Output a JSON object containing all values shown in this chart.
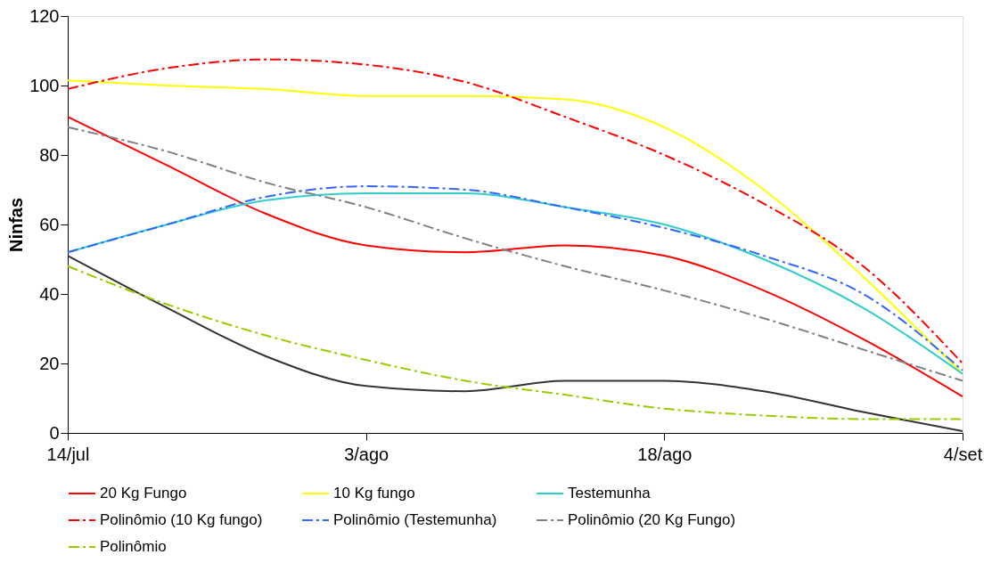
{
  "chart_data": {
    "type": "line",
    "ylabel": "Ninfas",
    "categories": [
      "14/jul",
      null,
      null,
      "3/ago",
      null,
      null,
      "18/ago",
      null,
      null,
      "4/set"
    ],
    "ylim": [
      0,
      120
    ],
    "yticks": [
      0,
      20,
      40,
      60,
      80,
      100,
      120
    ],
    "grid": false,
    "legend": "bottom",
    "marker": "none",
    "series": [
      {
        "color": "#333333",
        "line_style": "solid",
        "values": [
          51,
          36,
          22,
          13.5,
          12,
          15,
          15,
          12,
          6,
          0.5
        ]
      },
      {
        "name": "20 Kg Fungo",
        "color": "#ff0000",
        "line_style": "solid",
        "values": [
          91,
          77,
          63,
          54,
          52,
          54,
          51,
          41,
          27,
          10.5
        ]
      },
      {
        "name": "10 Kg fungo",
        "color": "#ffff00",
        "line_style": "solid",
        "values": [
          101.5,
          100,
          99,
          97,
          97,
          96,
          88,
          70,
          45,
          17
        ]
      },
      {
        "name": "Testemunha",
        "color": "#33cccc",
        "line_style": "solid",
        "values": [
          52,
          60,
          67,
          69,
          69,
          65,
          60,
          50,
          36,
          17
        ]
      },
      {
        "name": "Polinômio (10 Kg fungo)",
        "color": "#ff0000",
        "line_style": "dashed",
        "values": [
          99,
          105,
          107.5,
          106,
          101,
          91,
          80,
          66,
          48,
          20
        ]
      },
      {
        "name": "Polinômio (Testemunha)",
        "color": "#3366ff",
        "line_style": "dashed",
        "values": [
          52,
          60,
          68,
          71,
          70,
          65,
          59,
          51,
          40,
          18
        ]
      },
      {
        "name": "Polinômio (20 Kg Fungo)",
        "color": "#808080",
        "line_style": "dashed",
        "values": [
          88,
          81,
          72,
          65,
          56,
          48,
          41,
          33,
          24,
          15
        ]
      },
      {
        "name": "Polinômio",
        "color": "#99cc00",
        "line_style": "dashed",
        "values": [
          48,
          37,
          28,
          21,
          15,
          11,
          7,
          5,
          4,
          4
        ]
      }
    ]
  }
}
